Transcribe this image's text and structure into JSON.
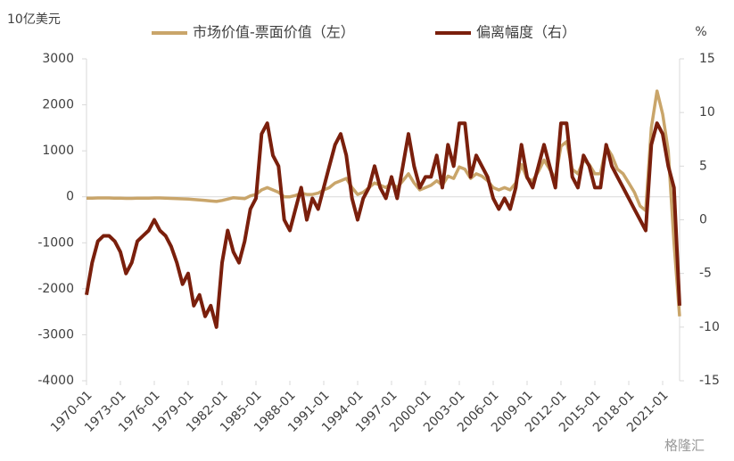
{
  "chart_data": {
    "type": "line",
    "y_label": "10亿美元",
    "y2_label": "%",
    "watermark": "格隆汇",
    "x": [
      "1970-01",
      "1970-07",
      "1971-01",
      "1971-07",
      "1972-01",
      "1972-07",
      "1973-01",
      "1973-07",
      "1974-01",
      "1974-07",
      "1975-01",
      "1975-07",
      "1976-01",
      "1976-07",
      "1977-01",
      "1977-07",
      "1978-01",
      "1978-07",
      "1979-01",
      "1979-07",
      "1980-01",
      "1980-07",
      "1981-01",
      "1981-07",
      "1982-01",
      "1982-07",
      "1983-01",
      "1983-07",
      "1984-01",
      "1984-07",
      "1985-01",
      "1985-07",
      "1986-01",
      "1986-07",
      "1987-01",
      "1987-07",
      "1988-01",
      "1988-07",
      "1989-01",
      "1989-07",
      "1990-01",
      "1990-07",
      "1991-01",
      "1991-07",
      "1992-01",
      "1992-07",
      "1993-01",
      "1993-07",
      "1994-01",
      "1994-07",
      "1995-01",
      "1995-07",
      "1996-01",
      "1996-07",
      "1997-01",
      "1997-07",
      "1998-01",
      "1998-07",
      "1999-01",
      "1999-07",
      "2000-01",
      "2000-07",
      "2001-01",
      "2001-07",
      "2002-01",
      "2002-07",
      "2003-01",
      "2003-07",
      "2004-01",
      "2004-07",
      "2005-01",
      "2005-07",
      "2006-01",
      "2006-07",
      "2007-01",
      "2007-07",
      "2008-01",
      "2008-07",
      "2009-01",
      "2009-07",
      "2010-01",
      "2010-07",
      "2011-01",
      "2011-07",
      "2012-01",
      "2012-07",
      "2013-01",
      "2013-07",
      "2014-01",
      "2014-07",
      "2015-01",
      "2015-07",
      "2016-01",
      "2016-07",
      "2017-01",
      "2017-07",
      "2018-01",
      "2018-07",
      "2019-01",
      "2019-07",
      "2020-01",
      "2020-07",
      "2021-01",
      "2021-07",
      "2022-01",
      "2022-07"
    ],
    "series": [
      {
        "name": "市场价值-票面价值（左）",
        "color": "#c9a56a",
        "axis": "y",
        "values": [
          -30,
          -30,
          -25,
          -25,
          -25,
          -30,
          -30,
          -35,
          -35,
          -30,
          -30,
          -30,
          -25,
          -25,
          -30,
          -35,
          -40,
          -45,
          -50,
          -60,
          -70,
          -80,
          -90,
          -100,
          -80,
          -50,
          -20,
          -30,
          -40,
          20,
          50,
          150,
          200,
          150,
          100,
          0,
          0,
          30,
          80,
          50,
          50,
          80,
          150,
          200,
          300,
          350,
          400,
          200,
          50,
          100,
          200,
          300,
          250,
          200,
          300,
          200,
          350,
          500,
          300,
          150,
          200,
          250,
          350,
          250,
          450,
          400,
          650,
          600,
          400,
          500,
          450,
          350,
          200,
          150,
          200,
          150,
          300,
          700,
          400,
          350,
          550,
          800,
          600,
          400,
          1100,
          1200,
          600,
          500,
          800,
          700,
          500,
          500,
          1100,
          900,
          600,
          500,
          300,
          100,
          -200,
          -300,
          1500,
          2300,
          1800,
          1000,
          -1000,
          -2600
        ]
      },
      {
        "name": "偏离幅度（右）",
        "color": "#7a1f0c",
        "axis": "y2",
        "values": [
          -7,
          -4,
          -2,
          -1.5,
          -1.5,
          -2,
          -3,
          -5,
          -4,
          -2,
          -1.5,
          -1,
          0,
          -1,
          -1.5,
          -2.5,
          -4,
          -6,
          -5,
          -8,
          -7,
          -9,
          -8,
          -10,
          -4,
          -1,
          -3,
          -4,
          -2,
          1,
          2,
          8,
          9,
          6,
          5,
          0,
          -1,
          1,
          3,
          0,
          2,
          1,
          3,
          5,
          7,
          8,
          6,
          2,
          0,
          2,
          3,
          5,
          3,
          2,
          4,
          2,
          5,
          8,
          5,
          3,
          4,
          4,
          6,
          3,
          7,
          5,
          9,
          9,
          4,
          6,
          5,
          4,
          2,
          1,
          2,
          1,
          3,
          7,
          4,
          3,
          5,
          7,
          5,
          3,
          9,
          9,
          4,
          3,
          6,
          5,
          3,
          3,
          7,
          5,
          4,
          3,
          2,
          1,
          0,
          -1,
          7,
          9,
          8,
          5,
          3,
          -8
        ]
      }
    ],
    "ylim": [
      -4000,
      3000
    ],
    "yticks": [
      -4000,
      -3000,
      -2000,
      -1000,
      0,
      1000,
      2000,
      3000
    ],
    "y2lim": [
      -15,
      15
    ],
    "y2ticks": [
      -15,
      -10,
      -5,
      0,
      5,
      10,
      15
    ],
    "xtick_every": 6
  }
}
